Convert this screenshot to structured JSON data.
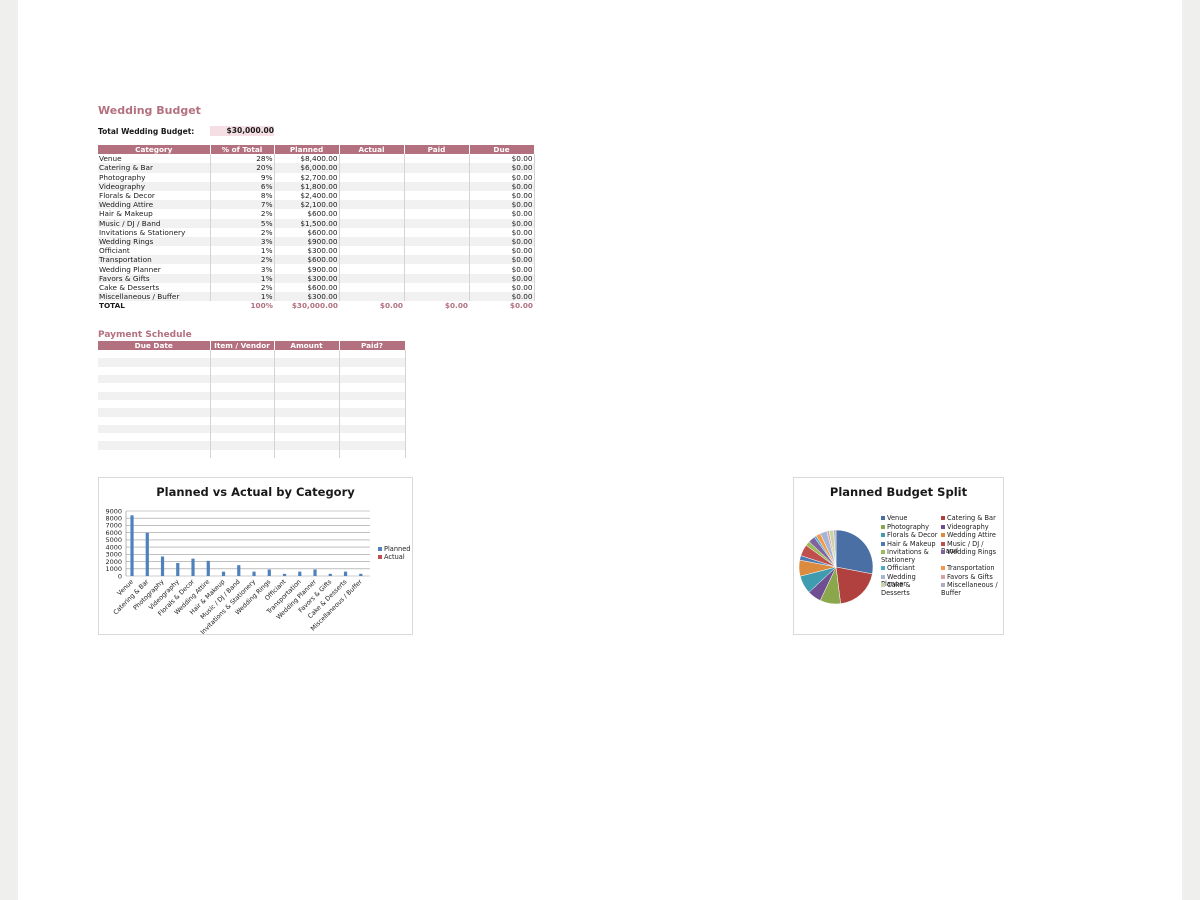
{
  "title": "Wedding Budget",
  "total_budget": {
    "label": "Total Wedding Budget:",
    "value": "$30,000.00"
  },
  "budget_table": {
    "headers": [
      "Category",
      "% of Total",
      "Planned",
      "Actual",
      "Paid",
      "Due"
    ],
    "rows": [
      {
        "category": "Venue",
        "pct": "28%",
        "planned": "$8,400.00",
        "actual": "",
        "paid": "",
        "due": "$0.00"
      },
      {
        "category": "Catering & Bar",
        "pct": "20%",
        "planned": "$6,000.00",
        "actual": "",
        "paid": "",
        "due": "$0.00"
      },
      {
        "category": "Photography",
        "pct": "9%",
        "planned": "$2,700.00",
        "actual": "",
        "paid": "",
        "due": "$0.00"
      },
      {
        "category": "Videography",
        "pct": "6%",
        "planned": "$1,800.00",
        "actual": "",
        "paid": "",
        "due": "$0.00"
      },
      {
        "category": "Florals & Decor",
        "pct": "8%",
        "planned": "$2,400.00",
        "actual": "",
        "paid": "",
        "due": "$0.00"
      },
      {
        "category": "Wedding Attire",
        "pct": "7%",
        "planned": "$2,100.00",
        "actual": "",
        "paid": "",
        "due": "$0.00"
      },
      {
        "category": "Hair & Makeup",
        "pct": "2%",
        "planned": "$600.00",
        "actual": "",
        "paid": "",
        "due": "$0.00"
      },
      {
        "category": "Music / DJ / Band",
        "pct": "5%",
        "planned": "$1,500.00",
        "actual": "",
        "paid": "",
        "due": "$0.00"
      },
      {
        "category": "Invitations & Stationery",
        "pct": "2%",
        "planned": "$600.00",
        "actual": "",
        "paid": "",
        "due": "$0.00"
      },
      {
        "category": "Wedding Rings",
        "pct": "3%",
        "planned": "$900.00",
        "actual": "",
        "paid": "",
        "due": "$0.00"
      },
      {
        "category": "Officiant",
        "pct": "1%",
        "planned": "$300.00",
        "actual": "",
        "paid": "",
        "due": "$0.00"
      },
      {
        "category": "Transportation",
        "pct": "2%",
        "planned": "$600.00",
        "actual": "",
        "paid": "",
        "due": "$0.00"
      },
      {
        "category": "Wedding Planner",
        "pct": "3%",
        "planned": "$900.00",
        "actual": "",
        "paid": "",
        "due": "$0.00"
      },
      {
        "category": "Favors & Gifts",
        "pct": "1%",
        "planned": "$300.00",
        "actual": "",
        "paid": "",
        "due": "$0.00"
      },
      {
        "category": "Cake & Desserts",
        "pct": "2%",
        "planned": "$600.00",
        "actual": "",
        "paid": "",
        "due": "$0.00"
      },
      {
        "category": "Miscellaneous / Buffer",
        "pct": "1%",
        "planned": "$300.00",
        "actual": "",
        "paid": "",
        "due": "$0.00"
      }
    ],
    "total": {
      "category": "TOTAL",
      "pct": "100%",
      "planned": "$30,000.00",
      "actual": "$0.00",
      "paid": "$0.00",
      "due": "$0.00"
    }
  },
  "payment_schedule": {
    "title": "Payment Schedule",
    "headers": [
      "Due Date",
      "Item / Vendor",
      "Amount",
      "Paid?"
    ],
    "empty_rows": 13
  },
  "chart_data": [
    {
      "type": "bar",
      "title": "Planned vs Actual by Category",
      "categories": [
        "Venue",
        "Catering & Bar",
        "Photography",
        "Videography",
        "Florals & Decor",
        "Wedding Attire",
        "Hair & Makeup",
        "Music / DJ / Band",
        "Invitations & Stationery",
        "Wedding Rings",
        "Officiant",
        "Transportation",
        "Wedding Planner",
        "Favors & Gifts",
        "Cake & Desserts",
        "Miscellaneous / Buffer"
      ],
      "series": [
        {
          "name": "Planned",
          "color": "#4f81bd",
          "values": [
            8400,
            6000,
            2700,
            1800,
            2400,
            2100,
            600,
            1500,
            600,
            900,
            300,
            600,
            900,
            300,
            600,
            300
          ]
        },
        {
          "name": "Actual",
          "color": "#c0504d",
          "values": [
            0,
            0,
            0,
            0,
            0,
            0,
            0,
            0,
            0,
            0,
            0,
            0,
            0,
            0,
            0,
            0
          ]
        }
      ],
      "yticks": [
        0,
        1000,
        2000,
        3000,
        4000,
        5000,
        6000,
        7000,
        8000,
        9000
      ],
      "ylim": [
        0,
        9000
      ],
      "grid": true,
      "legend": "right"
    },
    {
      "type": "pie",
      "title": "Planned Budget Split",
      "labels": [
        "Venue",
        "Catering & Bar",
        "Photography",
        "Videography",
        "Florals & Decor",
        "Wedding Attire",
        "Hair & Makeup",
        "Music / DJ / Band",
        "Invitations & Stationery",
        "Wedding Rings",
        "Officiant",
        "Transportation",
        "Wedding Planner",
        "Favors & Gifts",
        "Cake & Desserts",
        "Miscellaneous / Buffer"
      ],
      "values": [
        8400,
        6000,
        2700,
        1800,
        2400,
        2100,
        600,
        1500,
        600,
        900,
        300,
        600,
        900,
        300,
        600,
        300
      ],
      "colors": [
        "#4a6fa5",
        "#b0413e",
        "#8aa84b",
        "#6f4f91",
        "#3f9bb0",
        "#db8a3e",
        "#4e79b3",
        "#c0504d",
        "#9bbb59",
        "#8064a2",
        "#4bacc6",
        "#f79646",
        "#a5b5d5",
        "#d5a5a4",
        "#c6d6a9",
        "#b6a9c6"
      ],
      "legend": "right"
    }
  ]
}
